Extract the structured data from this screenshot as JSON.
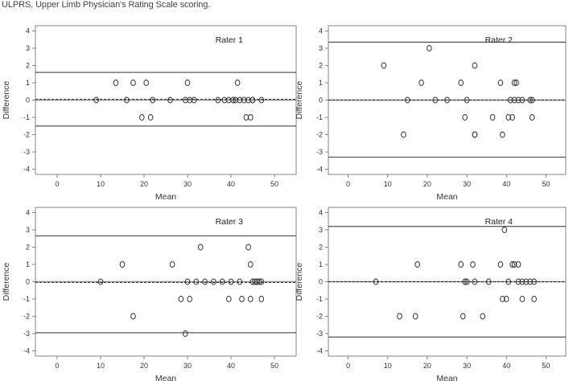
{
  "caption": "ULPRS, Upper Limb Physician's Rating Scale scoring.",
  "chart_data": [
    {
      "type": "scatter",
      "title": "Rater 1",
      "xlabel": "Mean",
      "ylabel": "Difference",
      "xlim": [
        -5,
        55
      ],
      "ylim": [
        -4.3,
        4.3
      ],
      "xticks": [
        0,
        10,
        20,
        30,
        40,
        50
      ],
      "yticks": [
        -4,
        -3,
        -2,
        -1,
        0,
        1,
        2,
        3,
        4
      ],
      "mean_difference": 0.05,
      "limits_of_agreement": [
        1.6,
        -1.5
      ],
      "points": [
        [
          9,
          0
        ],
        [
          13.5,
          1
        ],
        [
          16,
          0
        ],
        [
          17.5,
          1
        ],
        [
          19.5,
          -1
        ],
        [
          20.5,
          1
        ],
        [
          21.5,
          -1
        ],
        [
          22,
          0
        ],
        [
          26,
          0
        ],
        [
          29.5,
          0
        ],
        [
          30,
          1
        ],
        [
          30.5,
          0
        ],
        [
          31.5,
          0
        ],
        [
          37,
          0
        ],
        [
          38.5,
          0
        ],
        [
          39.5,
          0
        ],
        [
          40.5,
          0
        ],
        [
          41,
          0
        ],
        [
          41.5,
          1
        ],
        [
          42,
          0
        ],
        [
          43,
          0
        ],
        [
          43.5,
          -1
        ],
        [
          44,
          0
        ],
        [
          44.5,
          -1
        ],
        [
          45,
          0
        ],
        [
          45,
          0
        ],
        [
          47,
          0
        ]
      ]
    },
    {
      "type": "scatter",
      "title": "Rater 2",
      "xlabel": "Mean",
      "ylabel": "Difference",
      "xlim": [
        -5,
        55
      ],
      "ylim": [
        -4.3,
        4.3
      ],
      "xticks": [
        0,
        10,
        20,
        30,
        40,
        50
      ],
      "yticks": [
        -4,
        -3,
        -2,
        -1,
        0,
        1,
        2,
        3,
        4
      ],
      "mean_difference": 0.0,
      "limits_of_agreement": [
        3.35,
        -3.3
      ],
      "points": [
        [
          9,
          2
        ],
        [
          14,
          -2
        ],
        [
          15,
          0
        ],
        [
          18.5,
          1
        ],
        [
          20.5,
          3
        ],
        [
          22,
          0
        ],
        [
          25,
          0
        ],
        [
          28.5,
          1
        ],
        [
          29.5,
          -1
        ],
        [
          30,
          0
        ],
        [
          32,
          -2
        ],
        [
          32,
          -2
        ],
        [
          32,
          2
        ],
        [
          36.5,
          -1
        ],
        [
          38.5,
          1
        ],
        [
          39,
          -2
        ],
        [
          40.5,
          -1
        ],
        [
          41,
          0
        ],
        [
          41.5,
          -1
        ],
        [
          42,
          1
        ],
        [
          42,
          0
        ],
        [
          42.5,
          1
        ],
        [
          43,
          0
        ],
        [
          44,
          0
        ],
        [
          46,
          0
        ],
        [
          46.5,
          0
        ],
        [
          46.5,
          -1
        ]
      ]
    },
    {
      "type": "scatter",
      "title": "Rater 3",
      "xlabel": "Mean",
      "ylabel": "Difference",
      "xlim": [
        -5,
        55
      ],
      "ylim": [
        -4.3,
        4.3
      ],
      "xticks": [
        0,
        10,
        20,
        30,
        40,
        50
      ],
      "yticks": [
        -4,
        -3,
        -2,
        -1,
        0,
        1,
        2,
        3,
        4
      ],
      "mean_difference": -0.05,
      "limits_of_agreement": [
        2.65,
        -2.95
      ],
      "points": [
        [
          10,
          0
        ],
        [
          15,
          1
        ],
        [
          17.5,
          -2
        ],
        [
          26.5,
          1
        ],
        [
          28.5,
          -1
        ],
        [
          29.5,
          -3
        ],
        [
          30,
          0
        ],
        [
          30.5,
          -1
        ],
        [
          32,
          0
        ],
        [
          33,
          2
        ],
        [
          34,
          0
        ],
        [
          36,
          0
        ],
        [
          38,
          0
        ],
        [
          39.5,
          -1
        ],
        [
          40,
          0
        ],
        [
          42,
          0
        ],
        [
          42.5,
          -1
        ],
        [
          44,
          2
        ],
        [
          44.5,
          1
        ],
        [
          44.5,
          -1
        ],
        [
          45,
          0
        ],
        [
          45.5,
          0
        ],
        [
          46,
          0
        ],
        [
          46.5,
          0
        ],
        [
          47,
          -1
        ],
        [
          47,
          0
        ]
      ]
    },
    {
      "type": "scatter",
      "title": "Rater 4",
      "xlabel": "Mean",
      "ylabel": "Difference",
      "xlim": [
        -5,
        55
      ],
      "ylim": [
        -4.3,
        4.3
      ],
      "xticks": [
        0,
        10,
        20,
        30,
        40,
        50
      ],
      "yticks": [
        -4,
        -3,
        -2,
        -1,
        0,
        1,
        2,
        3,
        4
      ],
      "mean_difference": 0.0,
      "limits_of_agreement": [
        3.2,
        -3.2
      ],
      "points": [
        [
          7,
          0
        ],
        [
          13,
          -2
        ],
        [
          17,
          -2
        ],
        [
          17.5,
          1
        ],
        [
          28.5,
          1
        ],
        [
          29,
          -2
        ],
        [
          29.5,
          0
        ],
        [
          30,
          0
        ],
        [
          31.5,
          1
        ],
        [
          32,
          0
        ],
        [
          34,
          -2
        ],
        [
          35.5,
          0
        ],
        [
          38.5,
          1
        ],
        [
          39,
          -1
        ],
        [
          39.5,
          3
        ],
        [
          40,
          -1
        ],
        [
          40.5,
          0
        ],
        [
          41.5,
          1
        ],
        [
          42,
          1
        ],
        [
          43,
          1
        ],
        [
          43,
          0
        ],
        [
          44,
          -1
        ],
        [
          44,
          0
        ],
        [
          45,
          0
        ],
        [
          46,
          0
        ],
        [
          47,
          0
        ],
        [
          47,
          -1
        ]
      ]
    }
  ]
}
